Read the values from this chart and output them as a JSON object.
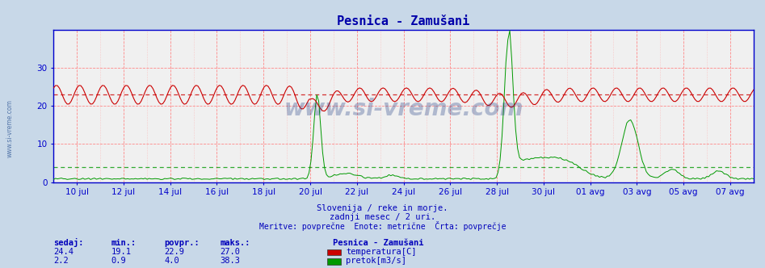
{
  "title": "Pesnica - Zamušani",
  "title_color": "#0000aa",
  "title_fontsize": 11,
  "bg_color": "#c8d8e8",
  "plot_bg_color": "#f0f0f0",
  "border_color": "#0000cc",
  "grid_color_v": "#ff8888",
  "grid_color_h": "#ffaaaa",
  "ymin": 0,
  "ymax": 40,
  "ytick_max": 38,
  "temp_avg": 22.9,
  "flow_avg": 4.0,
  "temp_color": "#cc0000",
  "flow_color": "#009900",
  "text_color": "#0000bb",
  "watermark": "www.si-vreme.com",
  "subtitle1": "Slovenija / reke in morje.",
  "subtitle2": "zadnji mesec / 2 uri.",
  "subtitle3": "Meritve: povprečne  Enote: metrične  Črta: povprečje",
  "legend_title": "Pesnica - Zamušani",
  "legend_temp_label": "temperatura[C]",
  "legend_flow_label": "pretok[m3/s]",
  "stats_labels": [
    "sedaj:",
    "min.:",
    "povpr.:",
    "maks.:"
  ],
  "stats_sedaj": [
    24.4,
    2.2
  ],
  "stats_min": [
    19.1,
    0.9
  ],
  "stats_povpr": [
    22.9,
    4.0
  ],
  "stats_maks": [
    27.0,
    38.3
  ],
  "x_tick_labels": [
    "10 jul",
    "12 jul",
    "14 jul",
    "16 jul",
    "18 jul",
    "20 jul",
    "22 jul",
    "24 jul",
    "26 jul",
    "28 jul",
    "30 jul",
    "01 avg",
    "03 avg",
    "05 avg",
    "07 avg"
  ],
  "x_tick_pos": [
    1,
    3,
    5,
    7,
    9,
    11,
    13,
    15,
    17,
    19,
    21,
    23,
    25,
    27,
    29
  ],
  "yticks": [
    0,
    10,
    20,
    30
  ],
  "n_points": 360,
  "xmax": 30
}
